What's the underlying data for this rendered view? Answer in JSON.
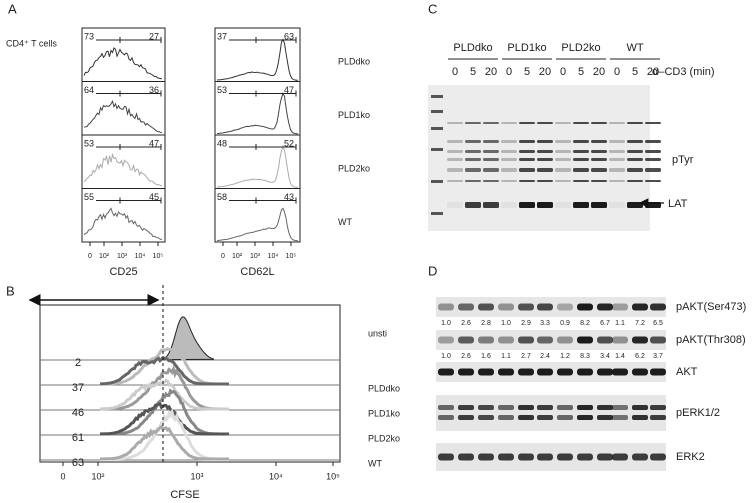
{
  "panel_a": {
    "label": "A",
    "subtitle": "CD4⁺ T cells",
    "rows": [
      "PLDdko",
      "PLD1ko",
      "PLD2ko",
      "WT"
    ],
    "tick_labels": [
      "0",
      "10²",
      "10³",
      "10⁴",
      "10⁵"
    ],
    "cd25": {
      "axis_label": "CD25",
      "gates": [
        [
          "73",
          "27"
        ],
        [
          "64",
          "36"
        ],
        [
          "53",
          "47"
        ],
        [
          "55",
          "45"
        ]
      ]
    },
    "cd62l": {
      "axis_label": "CD62L",
      "gates": [
        [
          "37",
          "63"
        ],
        [
          "53",
          "47"
        ],
        [
          "48",
          "52"
        ],
        [
          "58",
          "43"
        ]
      ]
    }
  },
  "panel_b": {
    "label": "B",
    "rows": [
      "unsti",
      "PLDdko",
      "PLD1ko",
      "PLD2ko",
      "WT"
    ],
    "percentages": [
      "2",
      "37",
      "46",
      "61",
      "63"
    ],
    "tick_labels": [
      "0",
      "10²",
      "10³",
      "10⁴",
      "10⁵"
    ],
    "axis_label": "CFSE"
  },
  "panel_c": {
    "label": "C",
    "groups": [
      "PLDdko",
      "PLD1ko",
      "PLD2ko",
      "WT"
    ],
    "timepoints": [
      "0",
      "5",
      "20"
    ],
    "stimulus": "α–CD3 (min)",
    "blot_label": "pTyr",
    "arrow_label": "LAT"
  },
  "panel_d": {
    "label": "D",
    "blots": [
      {
        "name": "pAKT(Ser473)",
        "quant": [
          "1.0",
          "2.6",
          "2.8",
          "1.0",
          "2.9",
          "3.3",
          "0.9",
          "8.2",
          "6.7",
          "1.1",
          "7.2",
          "6.5"
        ]
      },
      {
        "name": "pAKT(Thr308)",
        "quant": [
          "1.0",
          "2.6",
          "1.6",
          "1.1",
          "2.7",
          "2.4",
          "1.2",
          "8.3",
          "3.4",
          "1.4",
          "6.2",
          "3.7"
        ]
      },
      {
        "name": "AKT"
      },
      {
        "name": "pERK1/2"
      },
      {
        "name": "ERK2"
      }
    ]
  }
}
